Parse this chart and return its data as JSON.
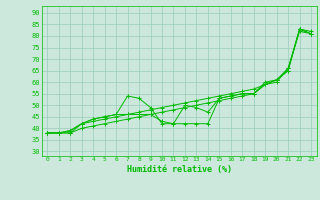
{
  "xlabel": "Humidité relative (%)",
  "xlim": [
    -0.5,
    23.5
  ],
  "ylim": [
    28,
    93
  ],
  "yticks": [
    30,
    35,
    40,
    45,
    50,
    55,
    60,
    65,
    70,
    75,
    80,
    85,
    90
  ],
  "xticks": [
    0,
    1,
    2,
    3,
    4,
    5,
    6,
    7,
    8,
    9,
    10,
    11,
    12,
    13,
    14,
    15,
    16,
    17,
    18,
    19,
    20,
    21,
    22,
    23
  ],
  "bg_color": "#cce8dc",
  "line_color": "#00bb00",
  "grid_color": "#99ccbb",
  "lines": [
    [
      38,
      38,
      39,
      42,
      44,
      45,
      46,
      54,
      53,
      49,
      42,
      42,
      50,
      49,
      47,
      53,
      54,
      55,
      55,
      60,
      61,
      65,
      83,
      82
    ],
    [
      38,
      38,
      38,
      42,
      43,
      44,
      45,
      46,
      47,
      48,
      49,
      50,
      51,
      52,
      53,
      54,
      55,
      56,
      57,
      59,
      61,
      66,
      82,
      81
    ],
    [
      38,
      38,
      38,
      40,
      41,
      42,
      43,
      44,
      45,
      46,
      47,
      48,
      49,
      50,
      51,
      52,
      53,
      54,
      55,
      59,
      61,
      65,
      83,
      81
    ],
    [
      38,
      38,
      39,
      42,
      44,
      45,
      46,
      46,
      46,
      46,
      43,
      42,
      42,
      42,
      42,
      53,
      54,
      55,
      55,
      59,
      60,
      66,
      83,
      81
    ]
  ]
}
